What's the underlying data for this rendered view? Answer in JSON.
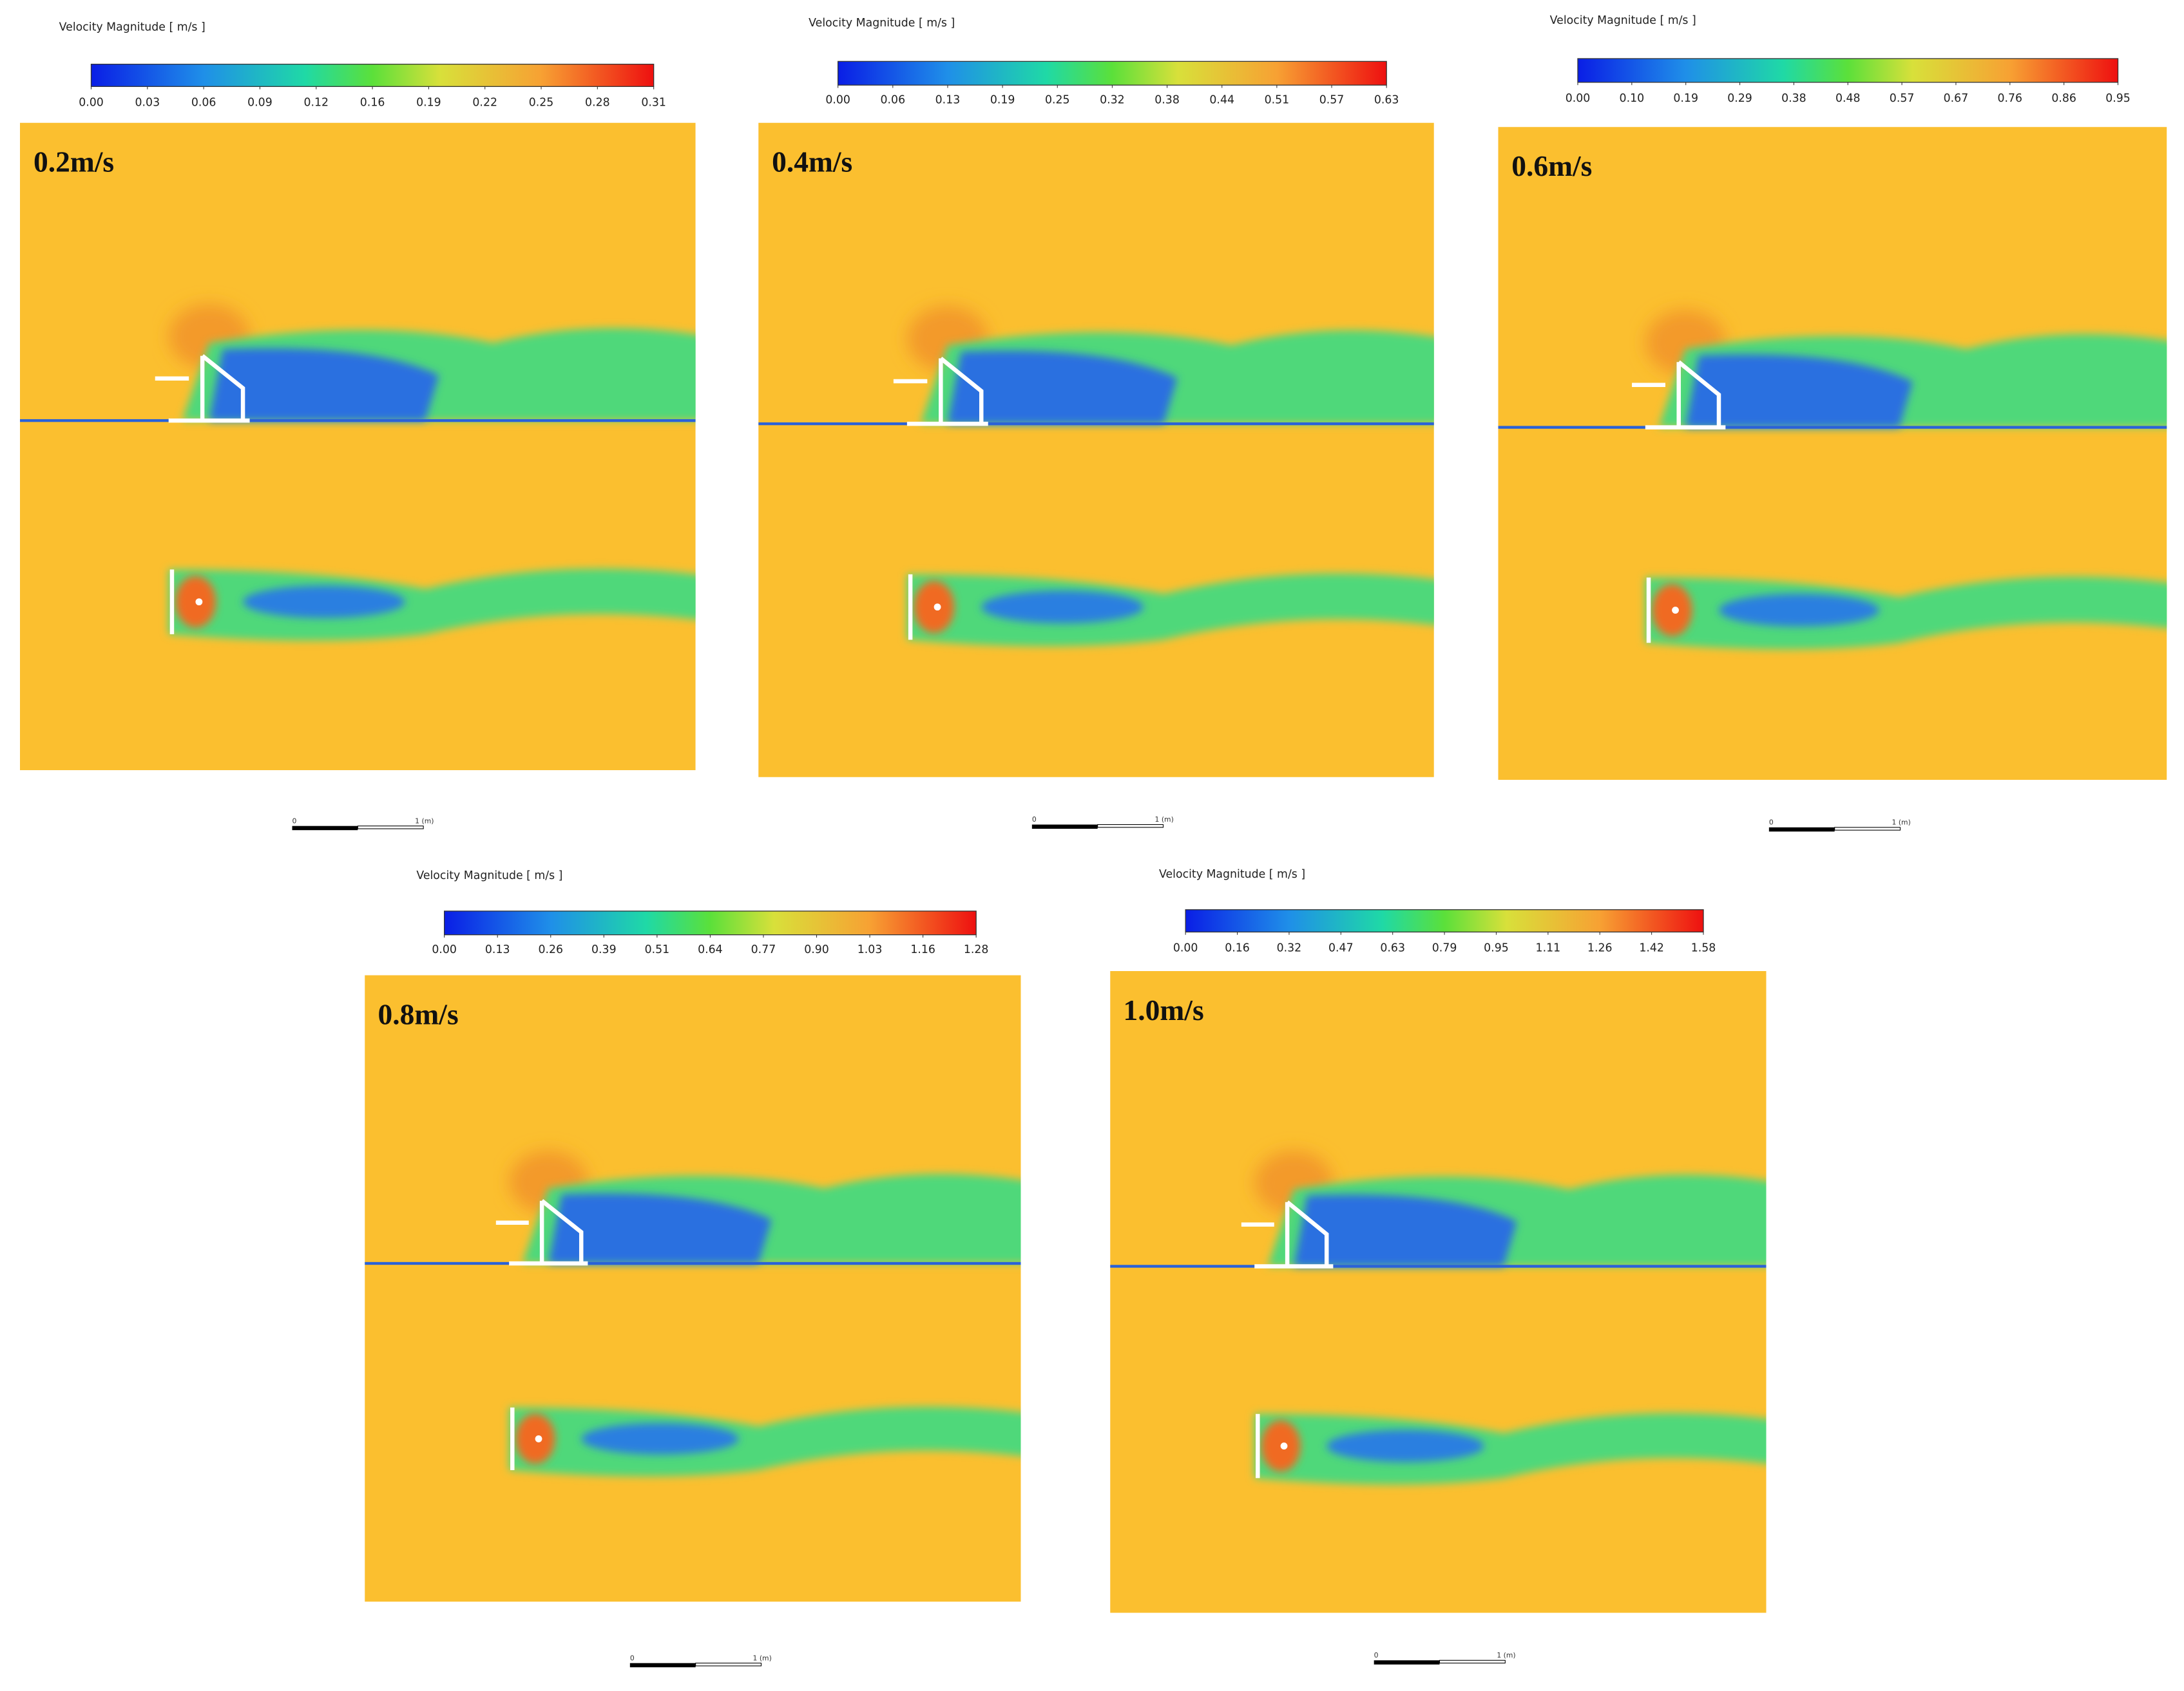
{
  "panels": [
    {
      "legend_title": "Velocity Magnitude [ m/s ]",
      "ticks": [
        "0.00",
        "0.03",
        "0.06",
        "0.09",
        "0.12",
        "0.16",
        "0.19",
        "0.22",
        "0.25",
        "0.28",
        "0.31"
      ],
      "label": "0.2m/s",
      "scale_start": "0",
      "scale_end": "1 (m)"
    },
    {
      "legend_title": "Velocity Magnitude [ m/s ]",
      "ticks": [
        "0.00",
        "0.06",
        "0.13",
        "0.19",
        "0.25",
        "0.32",
        "0.38",
        "0.44",
        "0.51",
        "0.57",
        "0.63"
      ],
      "label": "0.4m/s",
      "scale_start": "0",
      "scale_end": "1 (m)"
    },
    {
      "legend_title": "Velocity Magnitude [ m/s ]",
      "ticks": [
        "0.00",
        "0.10",
        "0.19",
        "0.29",
        "0.38",
        "0.48",
        "0.57",
        "0.67",
        "0.76",
        "0.86",
        "0.95"
      ],
      "label": "0.6m/s",
      "scale_start": "0",
      "scale_end": "1 (m)"
    },
    {
      "legend_title": "Velocity Magnitude [ m/s ]",
      "ticks": [
        "0.00",
        "0.13",
        "0.26",
        "0.39",
        "0.51",
        "0.64",
        "0.77",
        "0.90",
        "1.03",
        "1.16",
        "1.28"
      ],
      "label": "0.8m/s",
      "scale_start": "0",
      "scale_end": "1 (m)"
    },
    {
      "legend_title": "Velocity Magnitude [ m/s ]",
      "ticks": [
        "0.00",
        "0.16",
        "0.32",
        "0.47",
        "0.63",
        "0.79",
        "0.95",
        "1.11",
        "1.26",
        "1.42",
        "1.58"
      ],
      "label": "1.0m/s",
      "scale_start": "0",
      "scale_end": "1 (m)"
    }
  ]
}
